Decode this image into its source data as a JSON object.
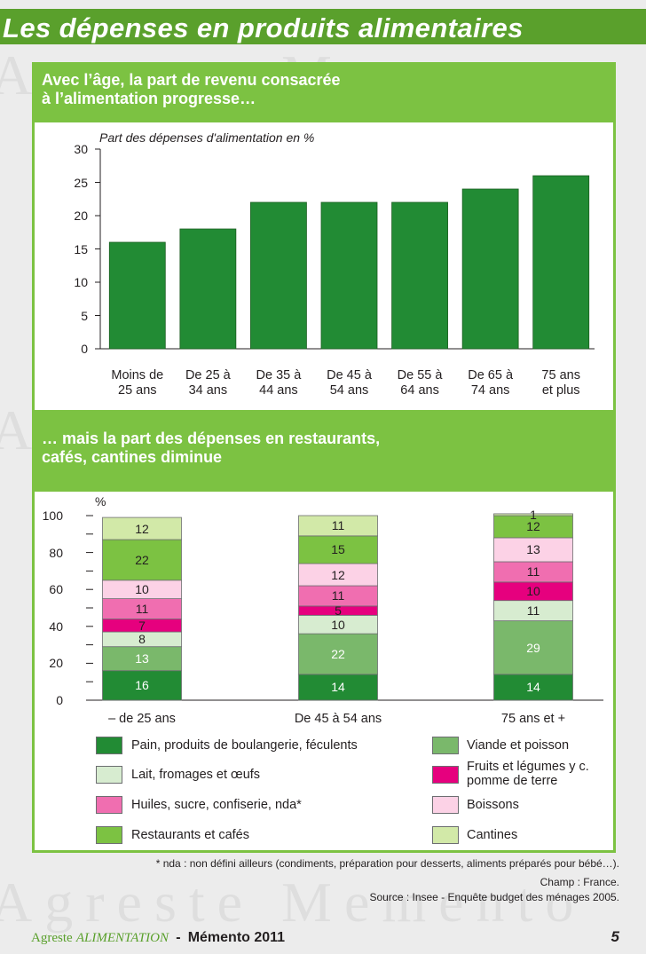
{
  "page": {
    "title": "Les dépenses en produits alimentaires",
    "footer_brand": "Agreste",
    "footer_section": "ALIMENTATION",
    "footer_separator": "-",
    "footer_publication": "Mémento 2011",
    "page_number": "5",
    "watermark_text": "Agreste Memento"
  },
  "notes": {
    "nda": "* nda : non défini ailleurs (condiments, préparation pour desserts, aliments préparés pour bébé…).",
    "champ": "Champ : France.",
    "source": "Source : Insee - Enquête budget des ménages 2005."
  },
  "colors": {
    "title_bar": "#5aa02c",
    "panel_green": "#7cc242",
    "bar_green": "#228b34"
  },
  "chart_data": [
    {
      "type": "bar",
      "heading": "Avec l’âge, la part de revenu consacrée à l’alimentation progresse…",
      "heading_lines": [
        "Avec l’âge, la part de revenu consacrée",
        "à l’alimentation progresse…"
      ],
      "title": "Part des dépenses d'alimentation en %",
      "categories": [
        [
          "Moins de",
          "25 ans"
        ],
        [
          "De 25 à",
          "34 ans"
        ],
        [
          "De 35 à",
          "44 ans"
        ],
        [
          "De 45 à",
          "54 ans"
        ],
        [
          "De 55 à",
          "64 ans"
        ],
        [
          "De 65 à",
          "74 ans"
        ],
        [
          "75 ans",
          "et plus"
        ]
      ],
      "values": [
        16,
        18,
        22,
        22,
        22,
        24,
        26
      ],
      "ylim": [
        0,
        30
      ],
      "yticks": [
        "0",
        "5",
        "10",
        "15",
        "20",
        "25",
        "30"
      ],
      "color": "#228b34"
    },
    {
      "type": "bar",
      "stacked": true,
      "heading": "… mais la part des dépenses en restaurants, cafés, cantines diminue",
      "heading_lines": [
        "… mais la part des dépenses en restaurants,",
        "cafés, cantines diminue"
      ],
      "ylabel": "%",
      "ylim": [
        0,
        100
      ],
      "yticks": [
        "0",
        "20",
        "40",
        "60",
        "80",
        "100"
      ],
      "categories": [
        "– de 25 ans",
        "De 45 à 54 ans",
        "75 ans et +"
      ],
      "series": [
        {
          "name": "Pain, produits de boulangerie, féculents",
          "color": "#228b34",
          "label_color": "#ffffff",
          "values": [
            16,
            14,
            14
          ],
          "labels": [
            "16",
            "14",
            "14"
          ]
        },
        {
          "name": "Viande et poisson",
          "color": "#7ab86b",
          "label_color": "#ffffff",
          "values": [
            13,
            22,
            29
          ],
          "labels": [
            "13",
            "22",
            "29"
          ]
        },
        {
          "name": "Lait, fromages et œufs",
          "color": "#d7ecd0",
          "label_color": "#231f20",
          "values": [
            8,
            10,
            11
          ],
          "labels": [
            "8",
            "10",
            "11"
          ]
        },
        {
          "name": "Fruits et légumes y c. pomme de terre",
          "color": "#e6007e",
          "label_color": "#231f20",
          "values": [
            7,
            5,
            10
          ],
          "labels": [
            "7",
            "5",
            "10"
          ]
        },
        {
          "name": "Huiles, sucre, confiserie, nda*",
          "color": "#f06eb0",
          "label_color": "#231f20",
          "values": [
            11,
            11,
            11
          ],
          "labels": [
            "11",
            "11",
            "11"
          ]
        },
        {
          "name": "Boissons",
          "color": "#fcd2e6",
          "label_color": "#231f20",
          "values": [
            10,
            12,
            13
          ],
          "labels": [
            "10",
            "12",
            "13"
          ]
        },
        {
          "name": "Restaurants et cafés",
          "color": "#7cc242",
          "label_color": "#231f20",
          "values": [
            22,
            15,
            12
          ],
          "labels": [
            "22",
            "15",
            "12"
          ]
        },
        {
          "name": "Cantines",
          "color": "#d2e9a8",
          "label_color": "#231f20",
          "values": [
            12,
            11,
            1
          ],
          "labels": [
            "12",
            "11",
            "1"
          ]
        }
      ],
      "legend": [
        [
          "Pain, produits de boulangerie, féculents",
          "Viande et poisson"
        ],
        [
          "Lait, fromages et œufs",
          "Fruits et légumes y c. pomme de terre"
        ],
        [
          "Huiles, sucre, confiserie, nda*",
          "Boissons"
        ],
        [
          "Restaurants et cafés",
          "Cantines"
        ]
      ]
    }
  ]
}
